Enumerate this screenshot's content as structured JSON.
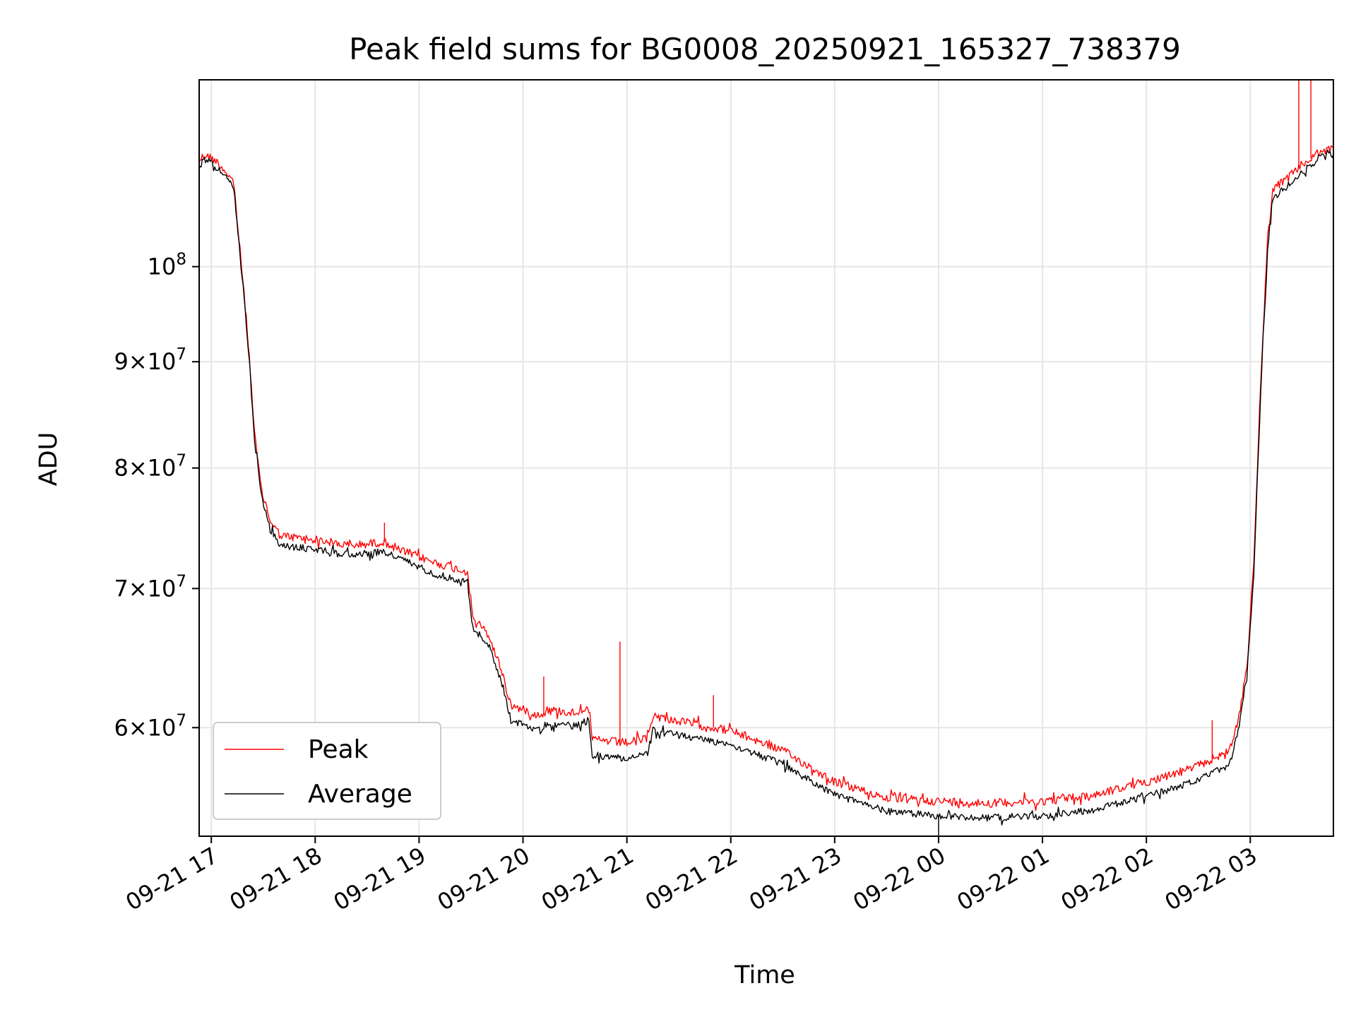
{
  "chart_data": {
    "type": "line",
    "title": "Peak field sums for BG0008_20250921_165327_738379",
    "xlabel": "Time",
    "ylabel": "ADU",
    "yscale": "log",
    "ylim": [
      53200000,
      123000000
    ],
    "xlim": [
      "09-21 16:53",
      "09-22 03:48"
    ],
    "grid": true,
    "legend_position": "lower left",
    "x_ticks": [
      {
        "t": "09-21 17",
        "label": "09-21 17"
      },
      {
        "t": "09-21 18",
        "label": "09-21 18"
      },
      {
        "t": "09-21 19",
        "label": "09-21 19"
      },
      {
        "t": "09-21 20",
        "label": "09-21 20"
      },
      {
        "t": "09-21 21",
        "label": "09-21 21"
      },
      {
        "t": "09-21 22",
        "label": "09-21 22"
      },
      {
        "t": "09-21 23",
        "label": "09-21 23"
      },
      {
        "t": "09-22 00",
        "label": "09-22 00"
      },
      {
        "t": "09-22 01",
        "label": "09-22 01"
      },
      {
        "t": "09-22 02",
        "label": "09-22 02"
      },
      {
        "t": "09-22 03",
        "label": "09-22 03"
      }
    ],
    "y_ticks": [
      {
        "value": 100000000,
        "mantissa": "",
        "exponent": "8"
      },
      {
        "value": 90000000,
        "mantissa": "9",
        "exponent": "7"
      },
      {
        "value": 80000000,
        "mantissa": "8",
        "exponent": "7"
      },
      {
        "value": 70000000,
        "mantissa": "7",
        "exponent": "7"
      },
      {
        "value": 60000000,
        "mantissa": "6",
        "exponent": "7"
      }
    ],
    "series": [
      {
        "name": "Peak",
        "color": "#ff0000",
        "points": [
          [
            "09-21 16:53",
            112500000
          ],
          [
            "09-21 16:56",
            113200000
          ],
          [
            "09-21 17:02",
            112600000
          ],
          [
            "09-21 17:08",
            111200000
          ],
          [
            "09-21 17:13",
            109800000
          ],
          [
            "09-21 17:16",
            103000000
          ],
          [
            "09-21 17:19",
            97000000
          ],
          [
            "09-21 17:22",
            90500000
          ],
          [
            "09-21 17:25",
            83000000
          ],
          [
            "09-21 17:29",
            78000000
          ],
          [
            "09-21 17:34",
            75500000
          ],
          [
            "09-21 17:40",
            74200000
          ],
          [
            "09-21 18:00",
            73900000
          ],
          [
            "09-21 18:20",
            73400000
          ],
          [
            "09-21 18:40",
            73700000
          ],
          [
            "09-21 18:50",
            73000000
          ],
          [
            "09-21 19:10",
            72000000
          ],
          [
            "09-21 19:28",
            71300000
          ],
          [
            "09-21 19:31",
            67800000
          ],
          [
            "09-21 19:40",
            66500000
          ],
          [
            "09-21 19:48",
            63800000
          ],
          [
            "09-21 19:53",
            61500000
          ],
          [
            "09-21 20:10",
            60800000
          ],
          [
            "09-21 20:14",
            61200000
          ],
          [
            "09-21 20:30",
            61000000
          ],
          [
            "09-21 20:38",
            61500000
          ],
          [
            "09-21 20:40",
            59200000
          ],
          [
            "09-21 21:00",
            59000000
          ],
          [
            "09-21 21:12",
            59300000
          ],
          [
            "09-21 21:15",
            60800000
          ],
          [
            "09-21 21:40",
            60200000
          ],
          [
            "09-21 22:00",
            59800000
          ],
          [
            "09-21 22:30",
            58500000
          ],
          [
            "09-21 23:00",
            56500000
          ],
          [
            "09-21 23:30",
            55500000
          ],
          [
            "09-22 00:00",
            55300000
          ],
          [
            "09-22 00:30",
            55200000
          ],
          [
            "09-22 01:00",
            55300000
          ],
          [
            "09-22 01:30",
            55700000
          ],
          [
            "09-22 02:00",
            56500000
          ],
          [
            "09-22 02:30",
            57500000
          ],
          [
            "09-22 02:48",
            58500000
          ],
          [
            "09-22 02:53",
            60500000
          ],
          [
            "09-22 02:58",
            64000000
          ],
          [
            "09-22 03:02",
            72000000
          ],
          [
            "09-22 03:06",
            88000000
          ],
          [
            "09-22 03:10",
            103000000
          ],
          [
            "09-22 03:13",
            109000000
          ],
          [
            "09-22 03:20",
            110000000
          ],
          [
            "09-22 03:30",
            112000000
          ],
          [
            "09-22 03:40",
            113500000
          ],
          [
            "09-22 03:48",
            114000000
          ]
        ],
        "spikes": [
          [
            "09-21 18:40",
            75300000
          ],
          [
            "09-21 20:12",
            63500000
          ],
          [
            "09-21 20:56",
            66000000
          ],
          [
            "09-21 21:50",
            62200000
          ],
          [
            "09-22 02:38",
            60500000
          ],
          [
            "09-22 03:28",
            124000000
          ],
          [
            "09-22 03:35",
            125000000
          ]
        ]
      },
      {
        "name": "Average",
        "color": "#000000",
        "points": [
          [
            "09-21 16:53",
            111800000
          ],
          [
            "09-21 16:56",
            112700000
          ],
          [
            "09-21 17:02",
            112000000
          ],
          [
            "09-21 17:08",
            110500000
          ],
          [
            "09-21 17:13",
            109000000
          ],
          [
            "09-21 17:16",
            102400000
          ],
          [
            "09-21 17:19",
            96500000
          ],
          [
            "09-21 17:22",
            90000000
          ],
          [
            "09-21 17:25",
            82500000
          ],
          [
            "09-21 17:29",
            77500000
          ],
          [
            "09-21 17:34",
            74700000
          ],
          [
            "09-21 17:40",
            73400000
          ],
          [
            "09-21 18:00",
            73100000
          ],
          [
            "09-21 18:20",
            72700000
          ],
          [
            "09-21 18:40",
            72900000
          ],
          [
            "09-21 18:50",
            72300000
          ],
          [
            "09-21 19:10",
            71100000
          ],
          [
            "09-21 19:28",
            70500000
          ],
          [
            "09-21 19:31",
            67000000
          ],
          [
            "09-21 19:40",
            65800000
          ],
          [
            "09-21 19:48",
            63000000
          ],
          [
            "09-21 19:53",
            60500000
          ],
          [
            "09-21 20:10",
            59800000
          ],
          [
            "09-21 20:14",
            60300000
          ],
          [
            "09-21 20:30",
            60100000
          ],
          [
            "09-21 20:38",
            60500000
          ],
          [
            "09-21 20:40",
            58200000
          ],
          [
            "09-21 21:00",
            58000000
          ],
          [
            "09-21 21:12",
            58300000
          ],
          [
            "09-21 21:15",
            59800000
          ],
          [
            "09-21 21:40",
            59300000
          ],
          [
            "09-21 22:00",
            58900000
          ],
          [
            "09-21 22:30",
            57600000
          ],
          [
            "09-21 23:00",
            55700000
          ],
          [
            "09-21 23:30",
            54700000
          ],
          [
            "09-22 00:00",
            54400000
          ],
          [
            "09-22 00:30",
            54300000
          ],
          [
            "09-22 01:00",
            54400000
          ],
          [
            "09-22 01:30",
            54800000
          ],
          [
            "09-22 02:00",
            55600000
          ],
          [
            "09-22 02:30",
            56600000
          ],
          [
            "09-22 02:48",
            57600000
          ],
          [
            "09-22 02:53",
            59700000
          ],
          [
            "09-22 02:58",
            63300000
          ],
          [
            "09-22 03:02",
            71200000
          ],
          [
            "09-22 03:06",
            87000000
          ],
          [
            "09-22 03:10",
            102000000
          ],
          [
            "09-22 03:13",
            108000000
          ],
          [
            "09-22 03:20",
            109000000
          ],
          [
            "09-22 03:30",
            111000000
          ],
          [
            "09-22 03:40",
            112800000
          ],
          [
            "09-22 03:48",
            113300000
          ]
        ],
        "spikes": [
          [
            "09-22 00:00",
            53200000
          ]
        ]
      }
    ]
  }
}
